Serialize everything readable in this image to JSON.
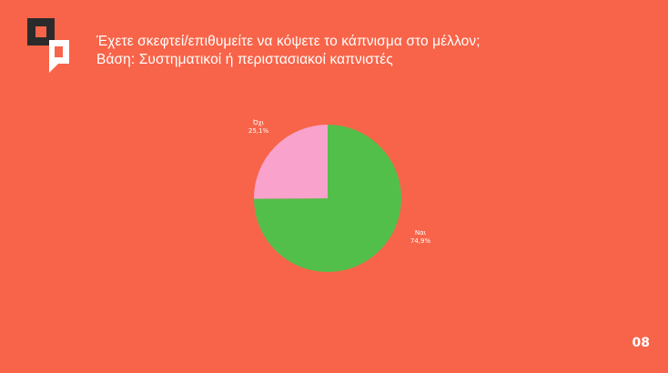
{
  "slide": {
    "title_line1": "Έχετε σκεφτεί/επιθυμείτε να κόψετε το κάπνισμα στο μέλλον;",
    "title_line2": "Βάση: Συστηματικοί ή περιστασιακοί καπνιστές",
    "page_number": "08",
    "background_color": "#F86449",
    "logo_icon": "speech-bubble-squares-logo"
  },
  "chart_data": {
    "type": "pie",
    "title": "Έχετε σκεφτεί/επιθυμείτε να κόψετε το κάπνισμα στο μέλλον;",
    "start_angle_deg": 0,
    "direction": "clockwise",
    "slices": [
      {
        "label": "Ναι",
        "value": 74.9,
        "value_label": "74,9%",
        "color": "#53BF4B"
      },
      {
        "label": "Όχι",
        "value": 25.1,
        "value_label": "25,1%",
        "color": "#F9A2CC"
      }
    ],
    "legend": "none"
  }
}
